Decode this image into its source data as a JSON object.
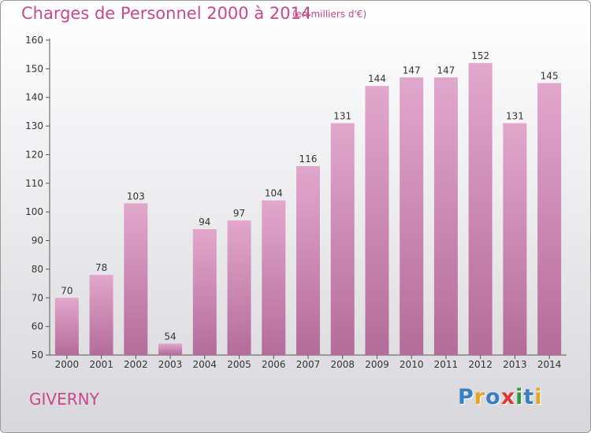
{
  "header": {
    "title": "Charges de Personnel 2000 à 2014",
    "unit_note": "(en milliers d'€)"
  },
  "footer": {
    "town": "GIVERNY",
    "logo_text": [
      "P",
      "r",
      "o",
      "x",
      "i",
      "t",
      "i"
    ],
    "logo_colors": [
      "#3a7fc4",
      "#e8a21f",
      "#3a7fc4",
      "#d83a3a",
      "#2e9a3a",
      "#3a7fc4",
      "#e8a21f"
    ]
  },
  "colors": {
    "bar_top": "#e2a7cc",
    "bar_bottom": "#b46c99",
    "title": "#c8488a"
  },
  "chart_data": {
    "type": "bar",
    "title": "Charges de Personnel 2000 à 2014",
    "subtitle": "(en milliers d'€)",
    "xlabel": "",
    "ylabel": "",
    "categories": [
      "2000",
      "2001",
      "2002",
      "2003",
      "2004",
      "2005",
      "2006",
      "2007",
      "2008",
      "2009",
      "2010",
      "2011",
      "2012",
      "2013",
      "2014"
    ],
    "values": [
      70,
      78,
      103,
      54,
      94,
      97,
      104,
      116,
      131,
      144,
      147,
      147,
      152,
      131,
      145
    ],
    "ylim": [
      50,
      160
    ],
    "yticks": [
      50,
      60,
      70,
      80,
      90,
      100,
      110,
      120,
      130,
      140,
      150,
      160
    ],
    "grid": false,
    "legend": "none"
  }
}
